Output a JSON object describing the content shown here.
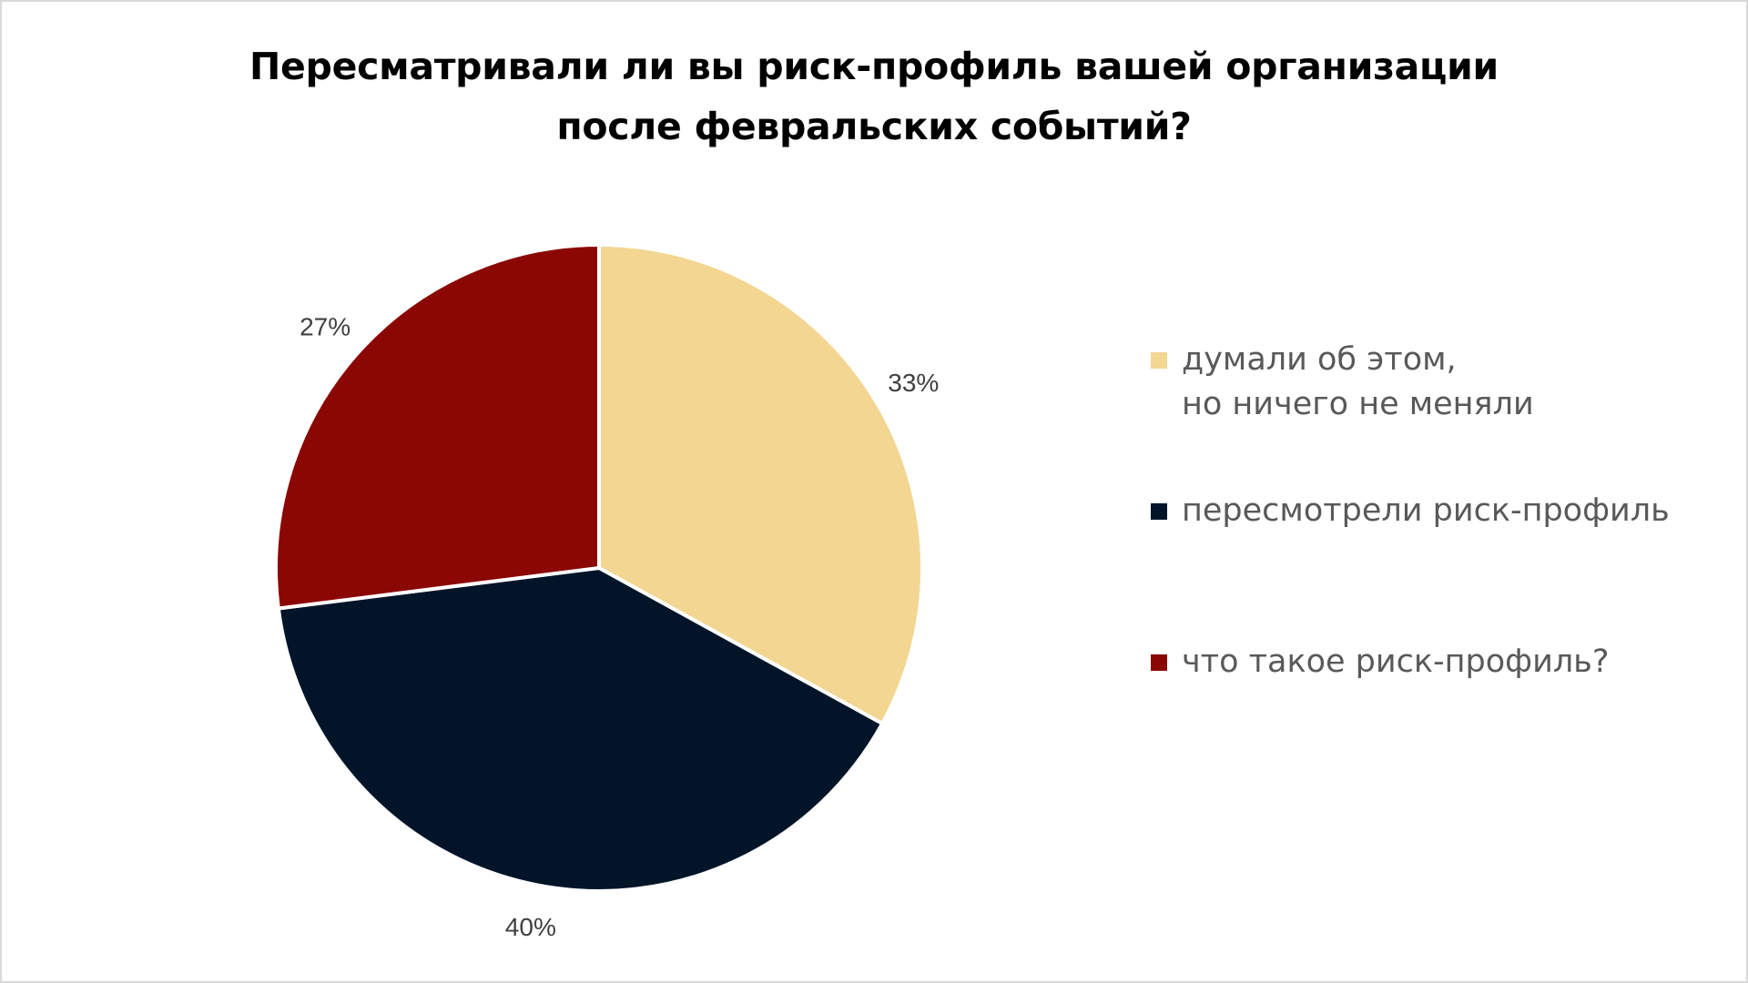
{
  "chart_data": {
    "type": "pie",
    "title": [
      "Пересматривали ли вы риск-профиль вашей организации",
      "после февральских событий?"
    ],
    "slices": [
      {
        "label": "думали об этом,\nно ничего не меняли",
        "value": 33,
        "value_label": "33%",
        "color": "#F2D691"
      },
      {
        "label": "пересмотрели риск-профиль",
        "value": 40,
        "value_label": "40%",
        "color": "#011428"
      },
      {
        "label": "что такое риск-профиль?",
        "value": 27,
        "value_label": "27%",
        "color": "#8B0703"
      }
    ],
    "start_angle": "12 o'clock",
    "direction": "clockwise",
    "legend_placement": "right",
    "slice_border_color": "#FFFFFF"
  }
}
